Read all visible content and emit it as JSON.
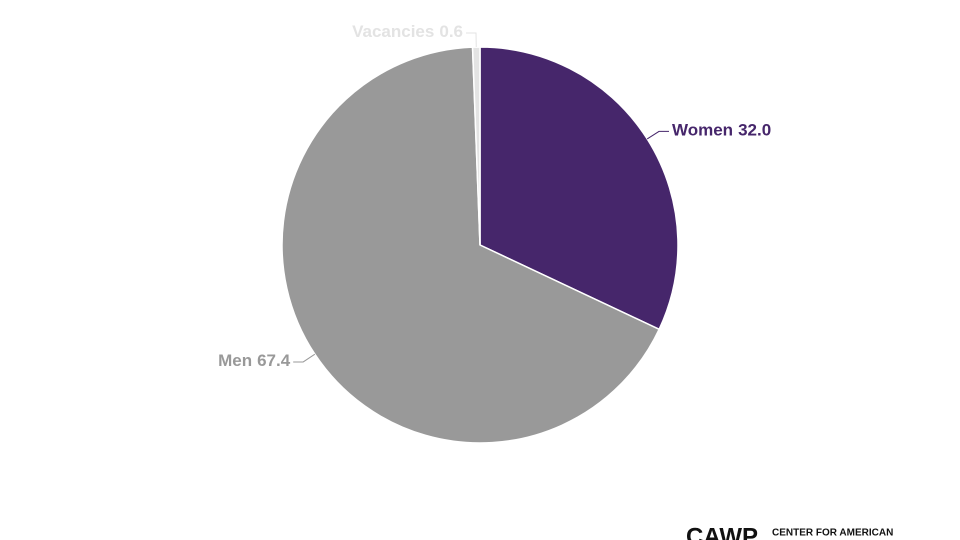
{
  "chart_data": {
    "type": "pie",
    "categories": [
      "Women",
      "Men",
      "Vacancies"
    ],
    "values": [
      32.0,
      67.4,
      0.6
    ],
    "value_labels": [
      "32.0",
      "67.4",
      "0.6"
    ],
    "colors": [
      "#46266b",
      "#999999",
      "#e3e3e3"
    ],
    "start_angle": -90,
    "direction": "clockwise"
  },
  "footer": {
    "logo": "CAWP",
    "tagline": "CENTER FOR AMERICAN"
  }
}
